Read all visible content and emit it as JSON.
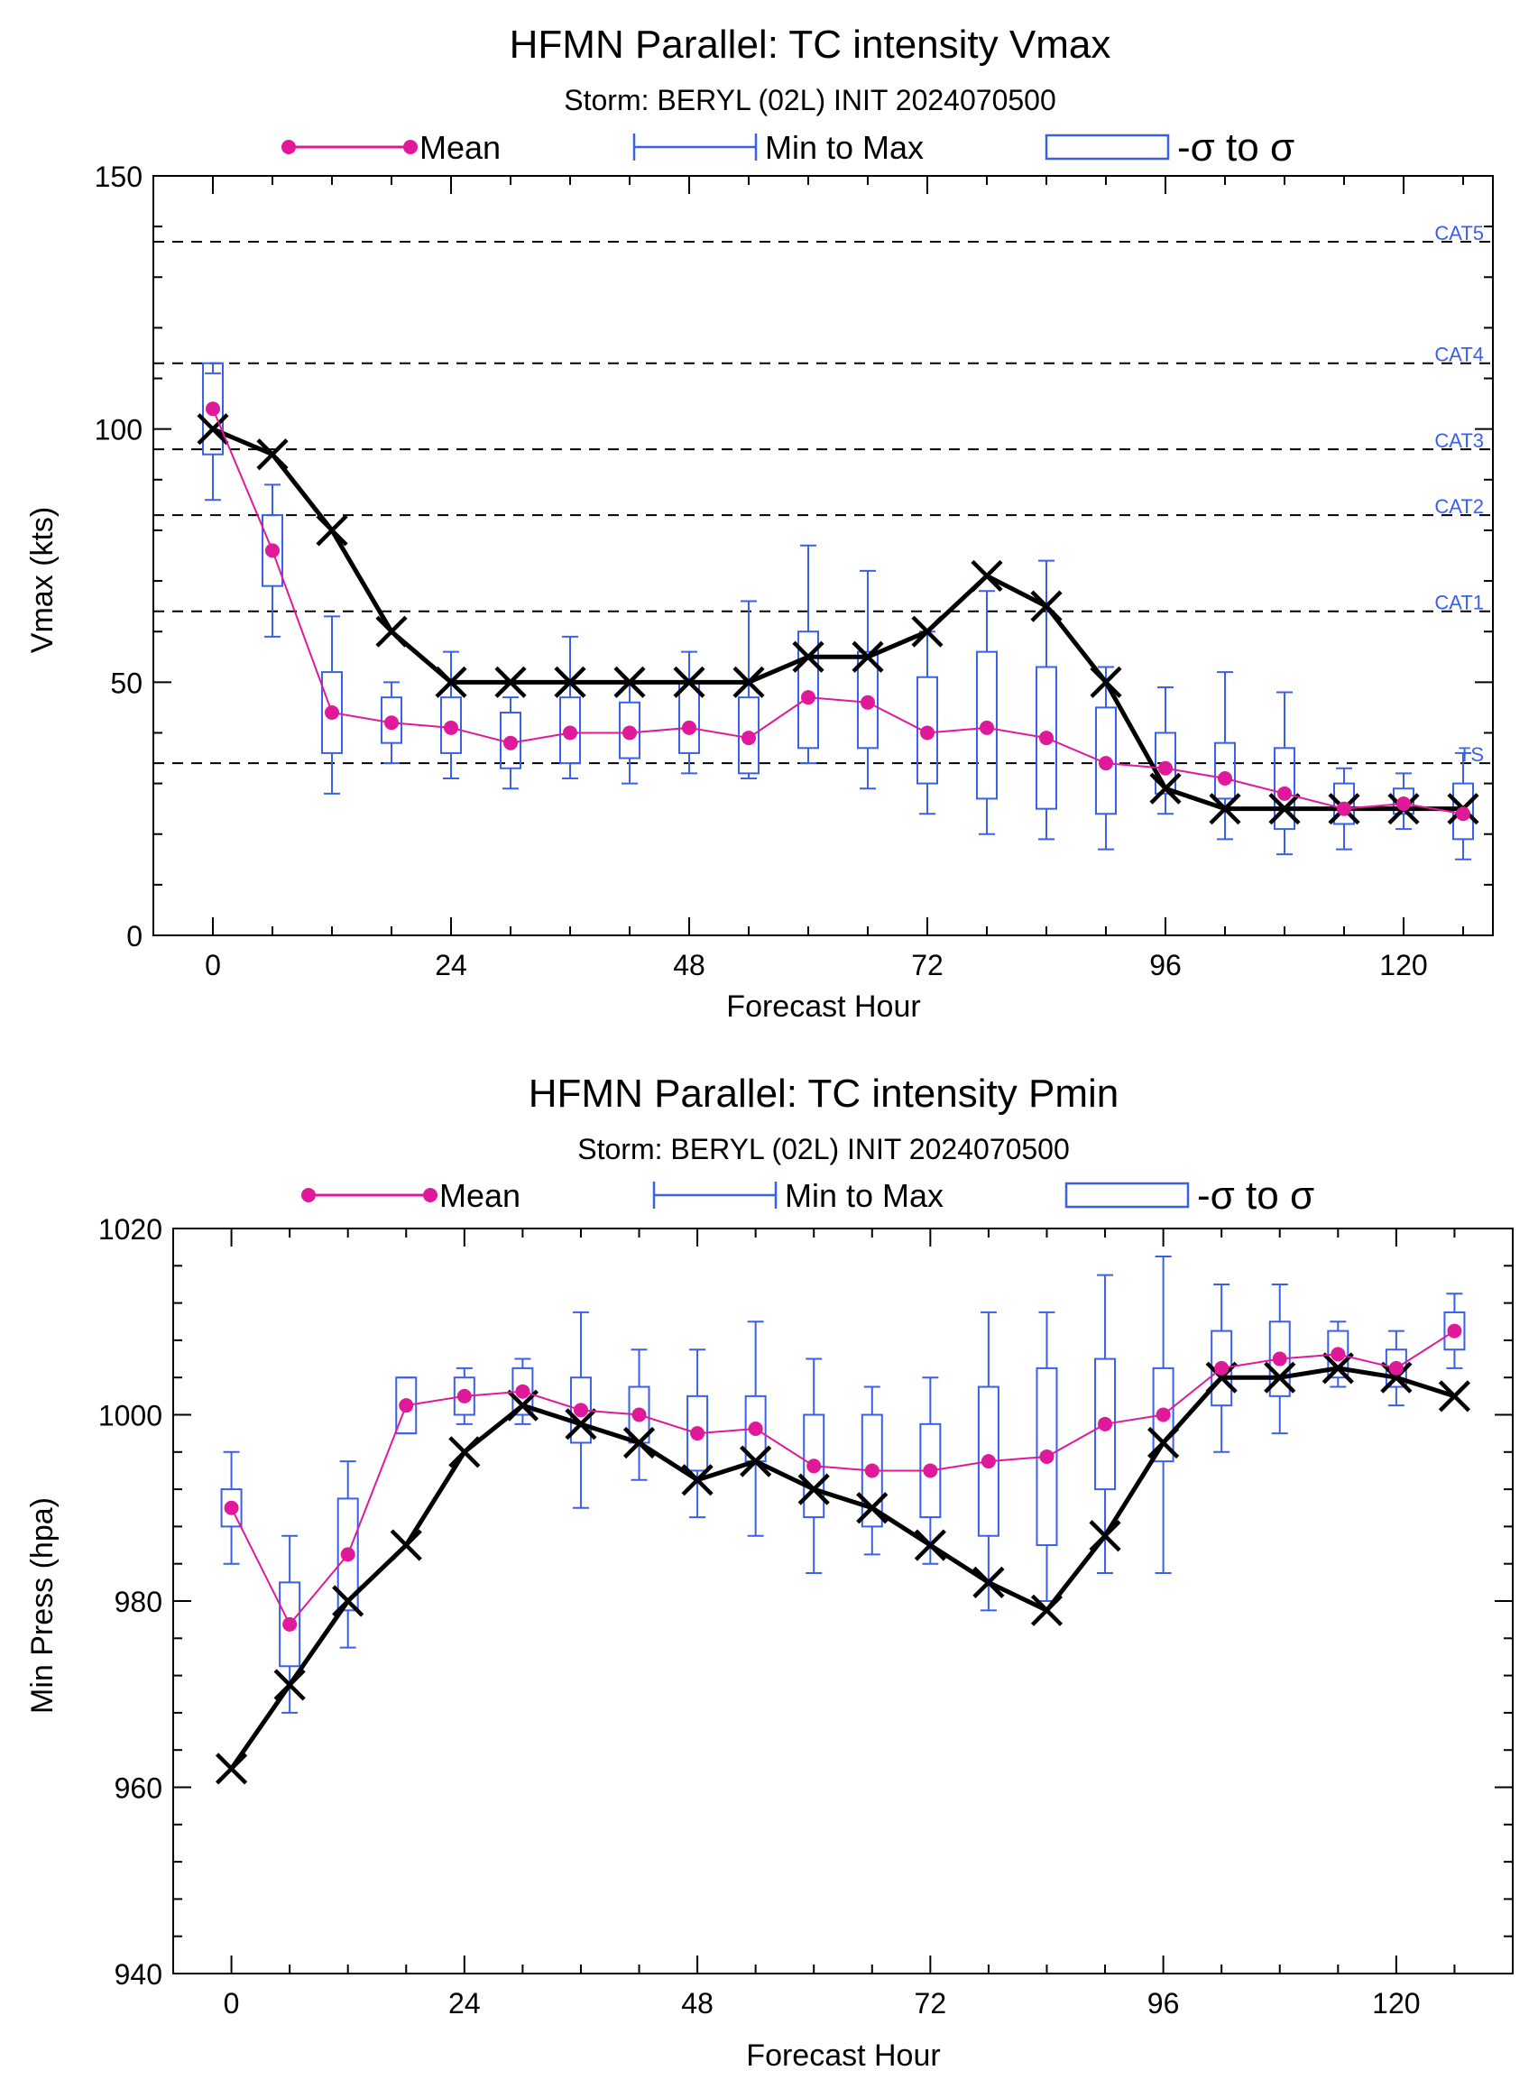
{
  "colors": {
    "mean": "#e0199a",
    "range": "#3a5fe8",
    "actual": "#000000",
    "threshold_label": "#3a5fe8"
  },
  "legend": {
    "mean_label": "Mean",
    "range_label": "Min to Max",
    "sigma_label": "-σ to σ"
  },
  "chart_data": [
    {
      "type": "line",
      "title": "HFMN Parallel: TC intensity Vmax",
      "subtitle": "Storm: BERYL (02L) INIT 2024070500",
      "xlabel": "Forecast Hour",
      "ylabel": "Vmax (kts)",
      "xlim": [
        -6,
        129
      ],
      "ylim": [
        0,
        150
      ],
      "xticks": [
        0,
        24,
        48,
        72,
        96,
        120
      ],
      "yticks": [
        0,
        50,
        100,
        150
      ],
      "grid": false,
      "legend_position": "top",
      "thresholds": [
        {
          "label": "TS",
          "value": 34
        },
        {
          "label": "CAT1",
          "value": 64
        },
        {
          "label": "CAT2",
          "value": 83
        },
        {
          "label": "CAT3",
          "value": 96
        },
        {
          "label": "CAT4",
          "value": 113
        },
        {
          "label": "CAT5",
          "value": 137
        }
      ],
      "x": [
        0,
        6,
        12,
        18,
        24,
        30,
        36,
        42,
        48,
        54,
        60,
        66,
        72,
        78,
        84,
        90,
        96,
        102,
        108,
        114,
        120,
        126
      ],
      "series": [
        {
          "name": "Mean",
          "values": [
            104,
            76,
            44,
            42,
            41,
            38,
            40,
            40,
            41,
            39,
            47,
            46,
            40,
            41,
            39,
            34,
            33,
            31,
            28,
            25,
            26,
            24
          ]
        },
        {
          "values": [
            100,
            95,
            80,
            60,
            50,
            50,
            50,
            50,
            50,
            50,
            55,
            55,
            60,
            71,
            65,
            50,
            29,
            25,
            25,
            25,
            25,
            25
          ]
        },
        {
          "name": "Min to Max",
          "min": [
            86,
            59,
            28,
            34,
            31,
            29,
            31,
            30,
            32,
            31,
            34,
            29,
            24,
            20,
            19,
            17,
            24,
            19,
            16,
            17,
            21,
            15
          ],
          "max": [
            111,
            89,
            63,
            50,
            56,
            47,
            59,
            50,
            56,
            66,
            77,
            72,
            60,
            68,
            74,
            53,
            49,
            52,
            48,
            33,
            32,
            36
          ]
        },
        {
          "name": "-σ to σ",
          "low": [
            95,
            69,
            36,
            38,
            36,
            33,
            34,
            35,
            36,
            32,
            37,
            37,
            30,
            27,
            25,
            24,
            28,
            27,
            21,
            22,
            24,
            19
          ],
          "high": [
            113,
            83,
            52,
            47,
            47,
            44,
            47,
            46,
            50,
            47,
            60,
            56,
            51,
            56,
            53,
            45,
            40,
            38,
            37,
            30,
            29,
            30
          ]
        }
      ]
    },
    {
      "type": "line",
      "title": "HFMN Parallel: TC intensity Pmin",
      "subtitle": "Storm: BERYL (02L) INIT 2024070500",
      "xlabel": "Forecast Hour",
      "ylabel": "Min Press (hpa)",
      "xlim": [
        -6,
        132
      ],
      "ylim": [
        940,
        1020
      ],
      "xticks": [
        0,
        24,
        48,
        72,
        96,
        120
      ],
      "yticks": [
        940,
        960,
        980,
        1000,
        1020
      ],
      "grid": false,
      "legend_position": "top",
      "x": [
        0,
        6,
        12,
        18,
        24,
        30,
        36,
        42,
        48,
        54,
        60,
        66,
        72,
        78,
        84,
        90,
        96,
        102,
        108,
        114,
        120,
        126
      ],
      "series": [
        {
          "name": "Mean",
          "values": [
            990,
            977.5,
            985,
            1001,
            1002,
            1002.5,
            1000.5,
            1000,
            998,
            998.5,
            994.5,
            994,
            994,
            995,
            995.5,
            999,
            1000,
            1005,
            1006,
            1006.5,
            1005,
            1009
          ]
        },
        {
          "values": [
            962,
            971,
            980,
            986,
            996,
            1001,
            999,
            997,
            993,
            995,
            992,
            990,
            986,
            982,
            979,
            987,
            997,
            1004,
            1004,
            1005,
            1004,
            1002
          ]
        },
        {
          "name": "Min to Max",
          "min": [
            984,
            968,
            975,
            998,
            999,
            999,
            990,
            993,
            989,
            987,
            983,
            985,
            984,
            979,
            980,
            983,
            983,
            996,
            998,
            1003,
            1001,
            1005
          ]
        },
        {
          "name": "-σ to σ",
          "low": [
            988,
            973,
            979,
            998,
            1000,
            1000,
            997,
            997,
            994,
            995,
            989,
            988,
            989,
            987,
            986,
            992,
            995,
            1001,
            1002,
            1004,
            1003,
            1007
          ]
        }
      ]
    }
  ]
}
